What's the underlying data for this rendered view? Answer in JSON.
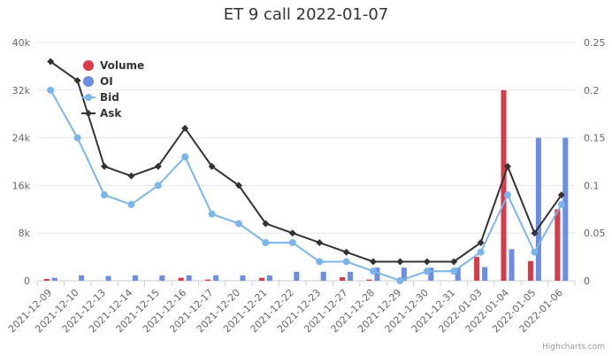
{
  "credits": "Highcharts.com",
  "chart_data": {
    "type": "bar",
    "title": "ET 9 call 2022-01-07",
    "categories": [
      "2021-12-09",
      "2021-12-10",
      "2021-12-13",
      "2021-12-14",
      "2021-12-15",
      "2021-12-16",
      "2021-12-17",
      "2021-12-20",
      "2021-12-21",
      "2021-12-22",
      "2021-12-23",
      "2021-12-27",
      "2021-12-28",
      "2021-12-29",
      "2021-12-30",
      "2021-12-31",
      "2022-01-03",
      "2022-01-04",
      "2022-01-05",
      "2022-01-06"
    ],
    "y_left": {
      "ylim": [
        0,
        40000
      ],
      "ticks": [
        0,
        8000,
        16000,
        24000,
        32000,
        40000
      ],
      "tick_labels": [
        "0",
        "8k",
        "16k",
        "24k",
        "32k",
        "40k"
      ]
    },
    "y_right": {
      "ylim": [
        0,
        0.25
      ],
      "ticks": [
        0,
        0.05,
        0.1,
        0.15,
        0.2,
        0.25
      ],
      "tick_labels": [
        "0",
        "0.05",
        "0.1",
        "0.15",
        "0.2",
        "0.25"
      ]
    },
    "grid": true,
    "legend_position": "top-left",
    "series": [
      {
        "name": "Volume",
        "type": "column",
        "axis": "left",
        "color": "#d93a4a",
        "values": [
          300,
          0,
          0,
          0,
          0,
          500,
          200,
          0,
          500,
          0,
          0,
          600,
          200,
          0,
          0,
          0,
          4000,
          32000,
          3300,
          12000
        ]
      },
      {
        "name": "OI",
        "type": "column",
        "axis": "left",
        "color": "#6b8de3",
        "values": [
          500,
          900,
          800,
          900,
          900,
          900,
          900,
          900,
          900,
          1500,
          1500,
          1500,
          2200,
          2200,
          2200,
          2200,
          2300,
          5300,
          24000,
          24000
        ]
      },
      {
        "name": "Bid",
        "type": "line",
        "axis": "right",
        "color": "#7cb5ec",
        "values": [
          0.2,
          0.15,
          0.09,
          0.08,
          0.1,
          0.13,
          0.07,
          0.06,
          0.04,
          0.04,
          0.02,
          0.02,
          0.01,
          0.0,
          0.01,
          0.01,
          0.03,
          0.09,
          0.03,
          0.08
        ]
      },
      {
        "name": "Ask",
        "type": "line",
        "axis": "right",
        "color": "#333333",
        "values": [
          0.23,
          0.21,
          0.12,
          0.11,
          0.12,
          0.16,
          0.12,
          0.1,
          0.06,
          0.05,
          0.04,
          0.03,
          0.02,
          0.02,
          0.02,
          0.02,
          0.04,
          0.12,
          0.05,
          0.09
        ]
      }
    ]
  }
}
